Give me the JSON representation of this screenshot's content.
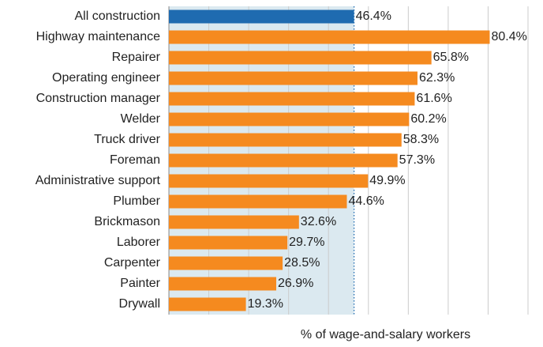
{
  "chart_data": {
    "type": "hbar",
    "categories": [
      "All construction",
      "Highway maintenance",
      "Repairer",
      "Operating engineer",
      "Construction manager",
      "Welder",
      "Truck driver",
      "Foreman",
      "Administrative support",
      "Plumber",
      "Brickmason",
      "Laborer",
      "Carpenter",
      "Painter",
      "Drywall"
    ],
    "values": [
      46.4,
      80.4,
      65.8,
      62.3,
      61.6,
      60.2,
      58.3,
      57.3,
      49.9,
      44.6,
      32.6,
      29.7,
      28.5,
      26.9,
      19.3
    ],
    "value_labels": [
      "46.4%",
      "80.4%",
      "65.8%",
      "62.3%",
      "61.6%",
      "60.2%",
      "58.3%",
      "57.3%",
      "49.9%",
      "44.6%",
      "32.6%",
      "29.7%",
      "28.5%",
      "26.9%",
      "19.3%"
    ],
    "colors": [
      "#1f6bb0",
      "#f58a1f",
      "#f58a1f",
      "#f58a1f",
      "#f58a1f",
      "#f58a1f",
      "#f58a1f",
      "#f58a1f",
      "#f58a1f",
      "#f58a1f",
      "#f58a1f",
      "#f58a1f",
      "#f58a1f",
      "#f58a1f",
      "#f58a1f"
    ],
    "reference_shade_color": "#dbe9f0",
    "xlabel": "% of wage-and-salary workers",
    "xlim": [
      0,
      90
    ],
    "xticks": [
      0,
      10,
      20,
      30,
      40,
      50,
      60,
      70,
      80,
      90
    ],
    "grid": true
  }
}
